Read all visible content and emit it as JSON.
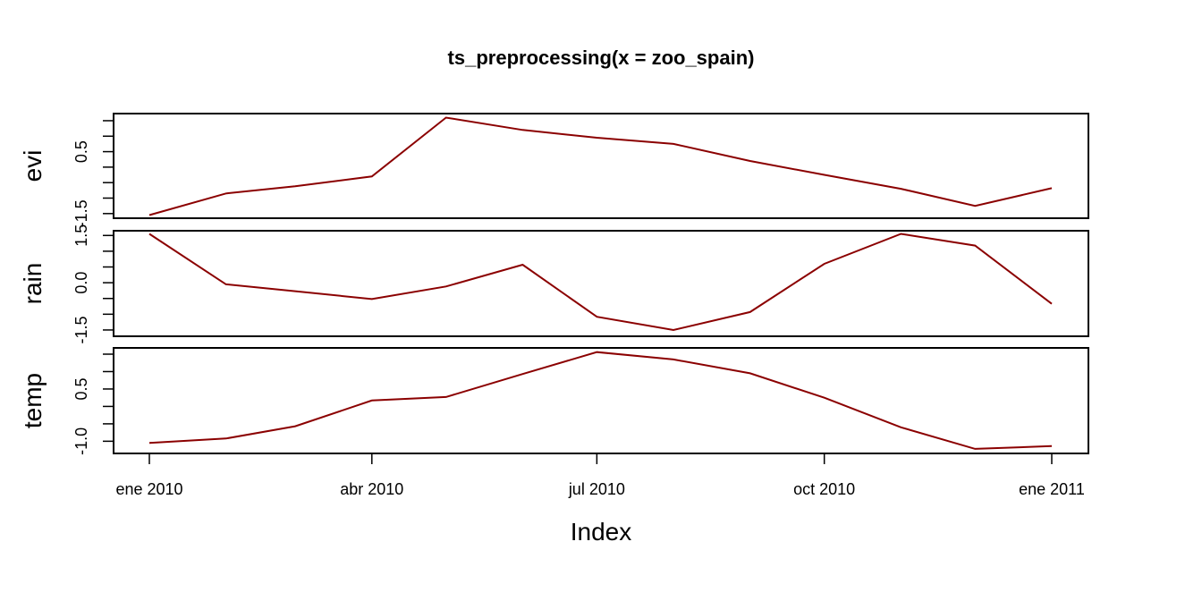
{
  "chart_data": {
    "type": "line",
    "title": "ts_preprocessing(x = zoo_spain)",
    "xlabel": "Index",
    "line_color": "#8b0000",
    "x": [
      "2010-01-01",
      "2010-02-01",
      "2010-03-01",
      "2010-04-01",
      "2010-05-01",
      "2010-06-01",
      "2010-07-01",
      "2010-08-01",
      "2010-09-01",
      "2010-10-01",
      "2010-11-01",
      "2010-12-01",
      "2011-01-01"
    ],
    "x_ticks": [
      {
        "date": "2010-01-01",
        "label": "ene 2010"
      },
      {
        "date": "2010-04-01",
        "label": "abr 2010"
      },
      {
        "date": "2010-07-01",
        "label": "jul 2010"
      },
      {
        "date": "2010-10-01",
        "label": "oct 2010"
      },
      {
        "date": "2011-01-01",
        "label": "ene 2011"
      }
    ],
    "series": [
      {
        "name": "evi",
        "ylim": [
          -1.65,
          1.73
        ],
        "y_tick_values": [
          -1.5,
          -1.0,
          -0.5,
          0.0,
          0.5,
          1.0,
          1.5
        ],
        "y_tick_labels": [
          {
            "value": -1.5,
            "label": "-1.5"
          },
          {
            "value": 0.5,
            "label": "0.5"
          }
        ],
        "values": [
          -1.55,
          -0.85,
          -0.62,
          -0.3,
          1.6,
          1.2,
          0.95,
          0.75,
          0.2,
          -0.25,
          -0.7,
          -1.25,
          -0.68
        ]
      },
      {
        "name": "rain",
        "ylim": [
          -1.7,
          1.65
        ],
        "y_tick_values": [
          -1.5,
          -1.0,
          -0.5,
          0.0,
          0.5,
          1.0,
          1.5
        ],
        "y_tick_labels": [
          {
            "value": -1.5,
            "label": "-1.5"
          },
          {
            "value": 0.0,
            "label": "0.0"
          },
          {
            "value": 1.5,
            "label": "1.5"
          }
        ],
        "values": [
          1.55,
          -0.05,
          -0.27,
          -0.52,
          -0.12,
          0.57,
          -1.08,
          -1.5,
          -0.93,
          0.6,
          1.55,
          1.18,
          -0.67
        ]
      },
      {
        "name": "temp",
        "ylim": [
          -1.35,
          1.68
        ],
        "y_tick_values": [
          -1.0,
          -0.5,
          0.0,
          0.5,
          1.0,
          1.5
        ],
        "y_tick_labels": [
          {
            "value": -1.0,
            "label": "-1.0"
          },
          {
            "value": 0.5,
            "label": "0.5"
          }
        ],
        "values": [
          -1.05,
          -0.92,
          -0.57,
          0.17,
          0.27,
          0.93,
          1.56,
          1.35,
          0.95,
          0.25,
          -0.6,
          -1.22,
          -1.14
        ]
      }
    ]
  }
}
